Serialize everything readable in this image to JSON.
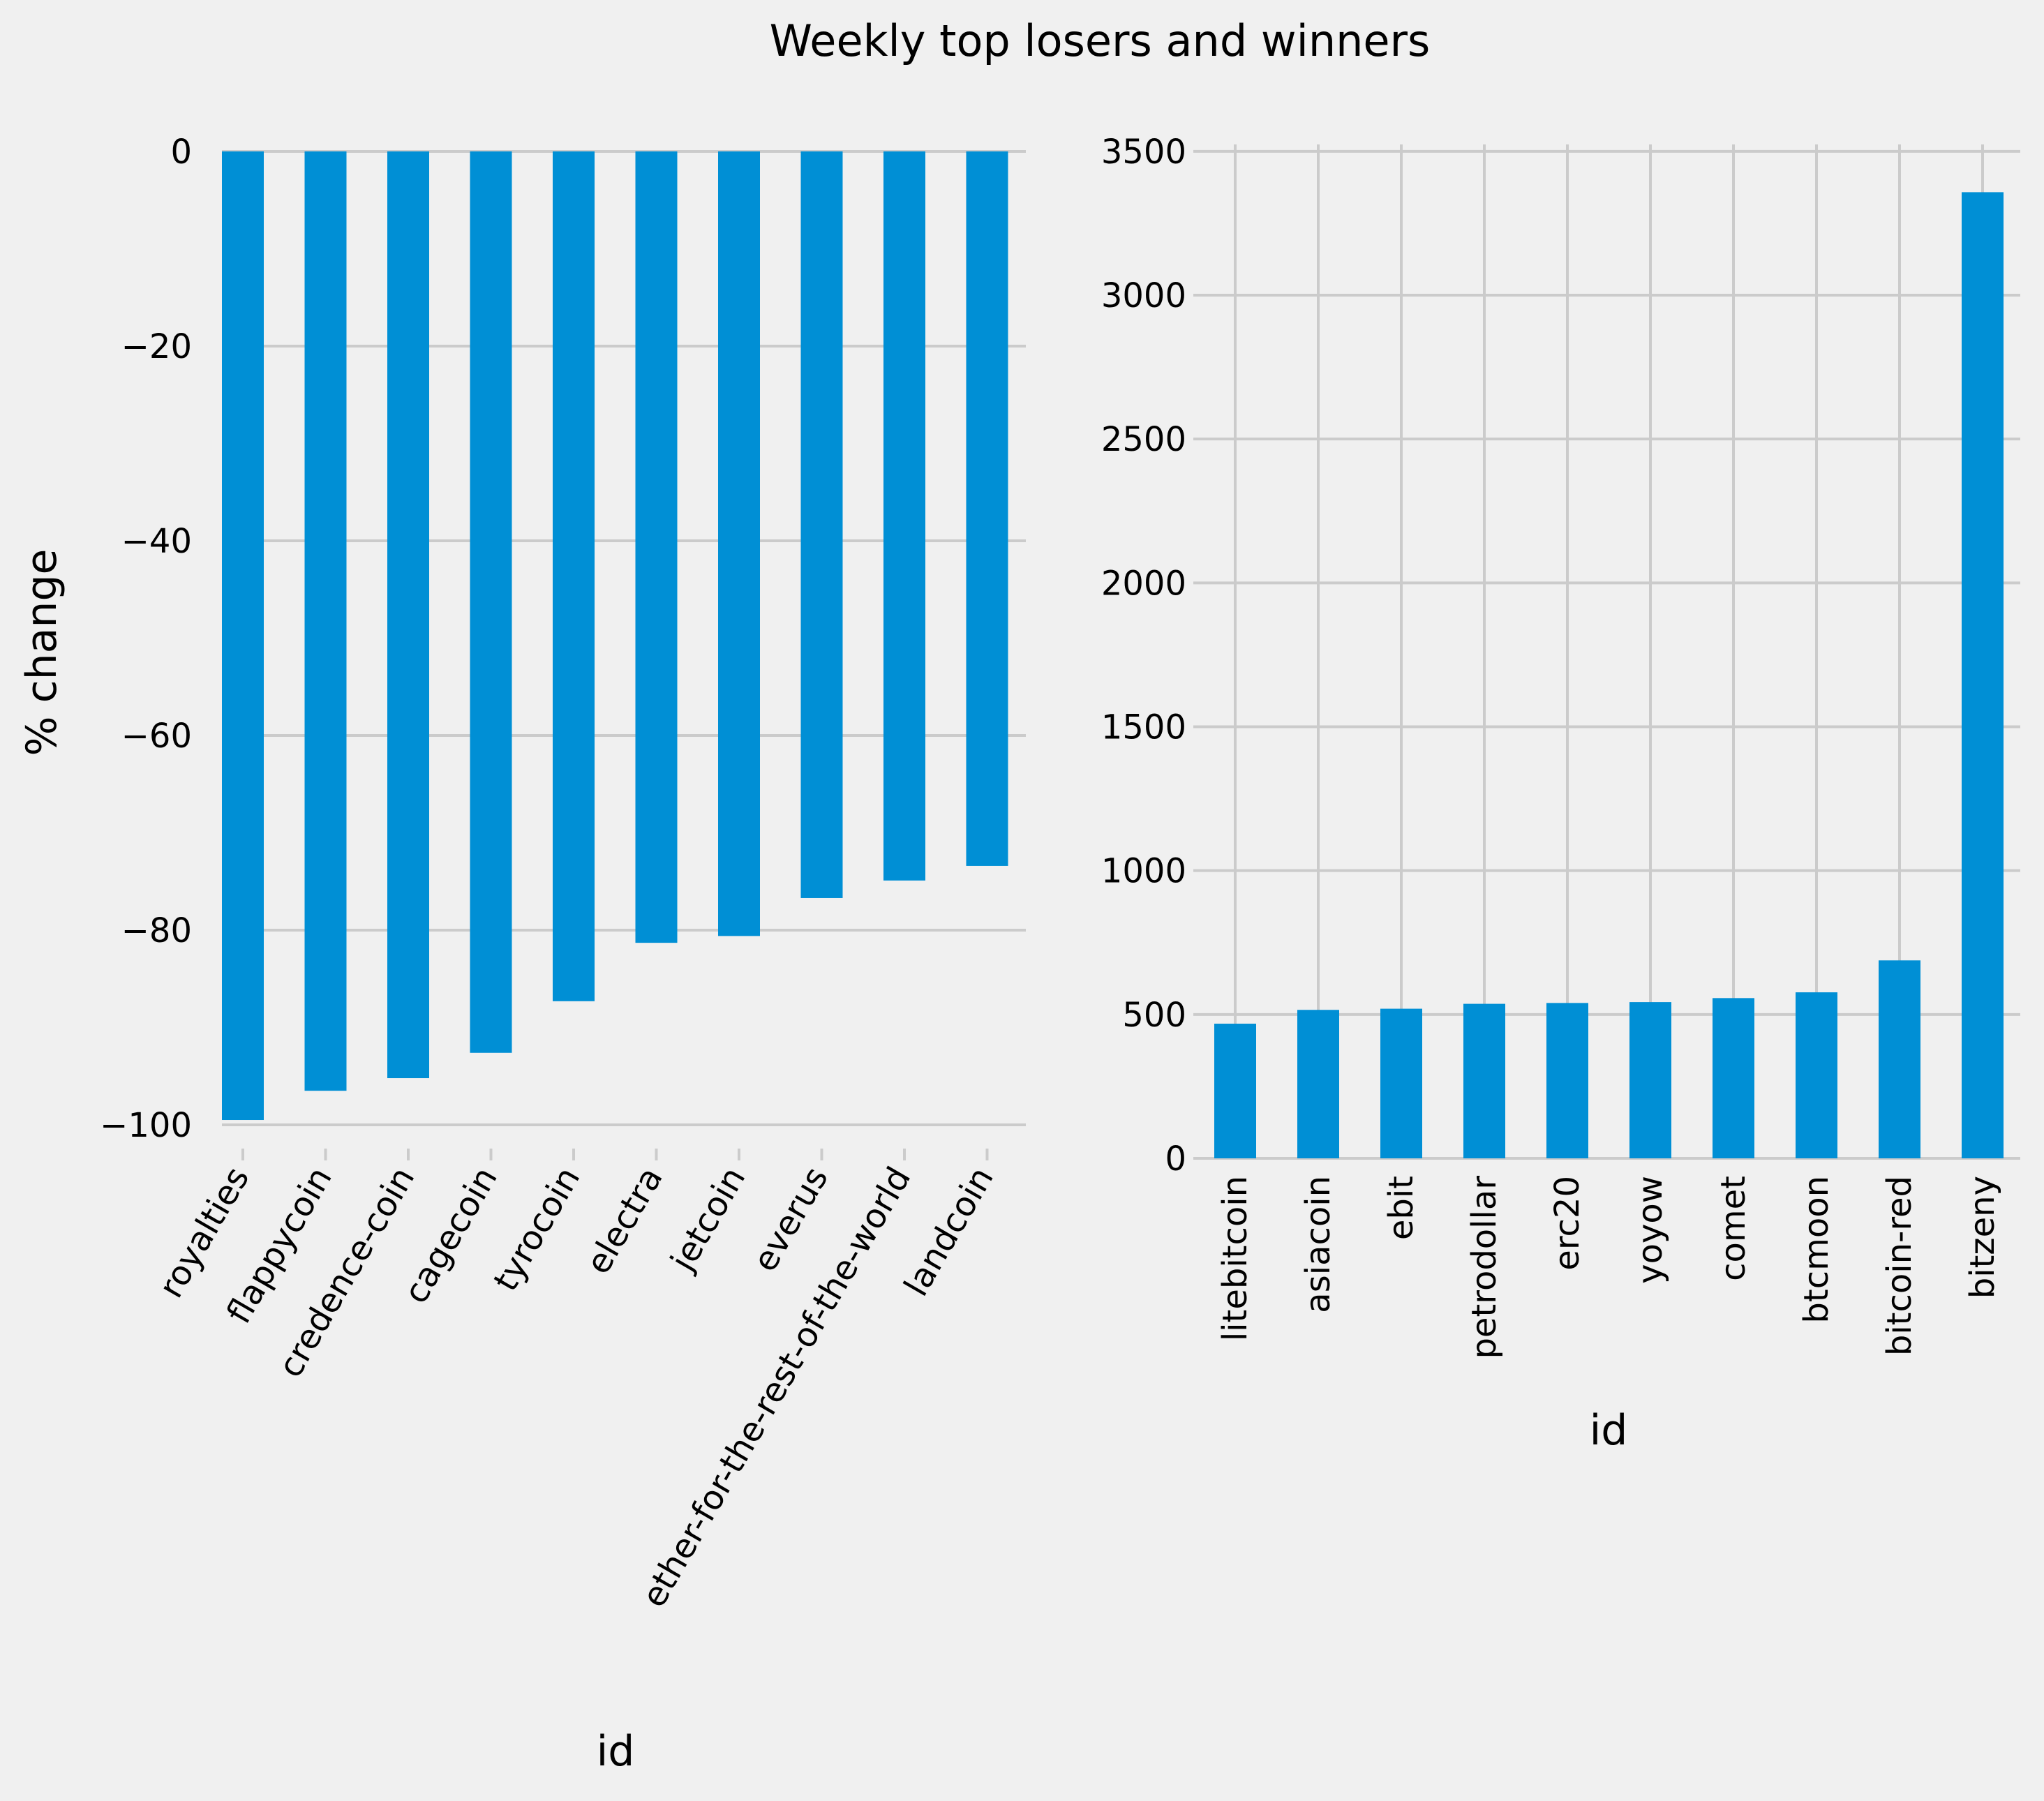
{
  "figure": {
    "title": "Weekly top losers and winners",
    "bar_color": "#008fd5",
    "background": "#f0f0f0",
    "grid_color": "#cbcbcb"
  },
  "chart_data": [
    {
      "type": "bar",
      "categories": [
        "royalties",
        "flappycoin",
        "credence-coin",
        "cagecoin",
        "tyrocoin",
        "electra",
        "jetcoin",
        "everus",
        "ether-for-the-rest-of-the-world",
        "landcoin"
      ],
      "values": [
        -99.5,
        -96.5,
        -95.2,
        -92.6,
        -87.3,
        -81.3,
        -80.6,
        -76.7,
        -74.9,
        -73.4
      ],
      "xlabel": "id",
      "ylabel": "% change",
      "ylim": [
        -103.8,
        0
      ],
      "yticks": [
        0,
        -20,
        -40,
        -60,
        -80,
        -100
      ],
      "ytick_labels": [
        "0",
        "−20",
        "−40",
        "−60",
        "−80",
        "−100"
      ],
      "xtick_rotation": -60,
      "grid": true
    },
    {
      "type": "bar",
      "categories": [
        "litebitcoin",
        "asiacoin",
        "ebit",
        "petrodollar",
        "erc20",
        "yoyow",
        "comet",
        "btcmoon",
        "bitcoin-red",
        "bitzeny"
      ],
      "values": [
        468,
        516,
        520,
        537,
        540,
        543,
        557,
        577,
        688,
        3358
      ],
      "xlabel": "id",
      "ylabel": "",
      "ylim": [
        0,
        3526
      ],
      "yticks": [
        0,
        500,
        1000,
        1500,
        2000,
        2500,
        3000,
        3500
      ],
      "ytick_labels": [
        "0",
        "500",
        "1000",
        "1500",
        "2000",
        "2500",
        "3000",
        "3500"
      ],
      "xtick_rotation": -90,
      "grid": true
    }
  ]
}
